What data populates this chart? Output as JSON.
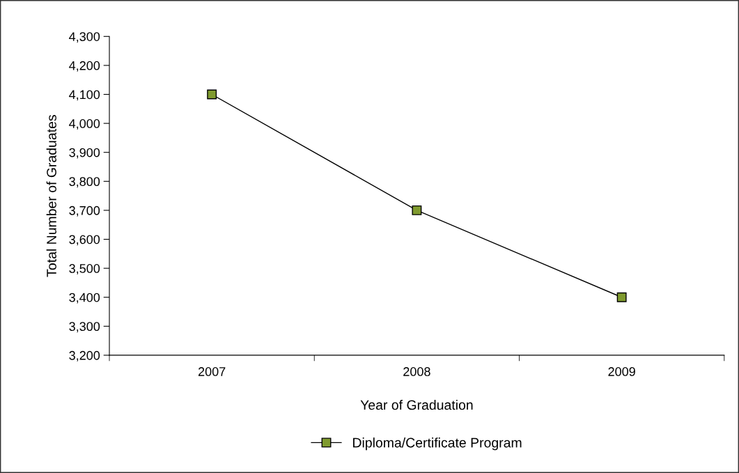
{
  "chart_data": {
    "type": "line",
    "xlabel": "Year of Graduation",
    "ylabel": "Total Number of Graduates",
    "categories": [
      "2007",
      "2008",
      "2009"
    ],
    "series": [
      {
        "name": "Diploma/Certificate Program",
        "color": "#7f9a2e",
        "values": [
          4100,
          3700,
          3400
        ]
      }
    ],
    "ylim": [
      3200,
      4300
    ],
    "yticks": [
      {
        "value": 3200,
        "label": "3,200"
      },
      {
        "value": 3300,
        "label": "3,300"
      },
      {
        "value": 3400,
        "label": "3,400"
      },
      {
        "value": 3500,
        "label": "3,500"
      },
      {
        "value": 3600,
        "label": "3,600"
      },
      {
        "value": 3700,
        "label": "3,700"
      },
      {
        "value": 3800,
        "label": "3,800"
      },
      {
        "value": 3900,
        "label": "3,900"
      },
      {
        "value": 4000,
        "label": "4,000"
      },
      {
        "value": 4100,
        "label": "4,100"
      },
      {
        "value": 4200,
        "label": "4,200"
      },
      {
        "value": 4300,
        "label": "4,300"
      }
    ],
    "marker": "square",
    "line_style": "solid",
    "legend": "bottom",
    "grid": false
  }
}
